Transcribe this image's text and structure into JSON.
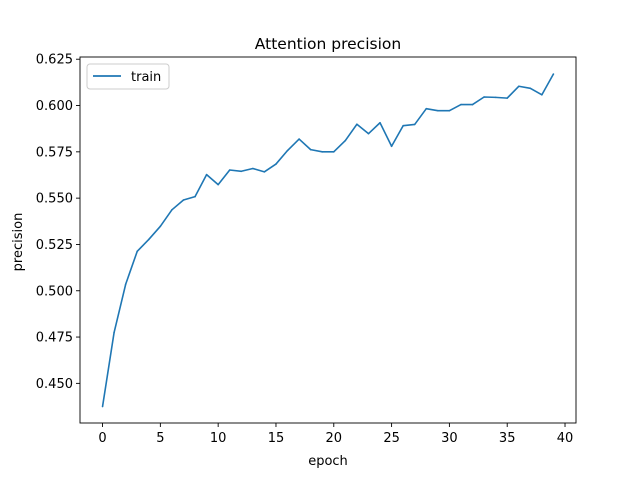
{
  "chart_data": {
    "type": "line",
    "title": "Attention precision",
    "xlabel": "epoch",
    "ylabel": "precision",
    "xlim": [
      -1.95,
      40.95
    ],
    "ylim": [
      0.4286,
      0.6262
    ],
    "xticks": [
      0,
      5,
      10,
      15,
      20,
      25,
      30,
      35,
      40
    ],
    "xtick_labels": [
      "0",
      "5",
      "10",
      "15",
      "20",
      "25",
      "30",
      "35",
      "40"
    ],
    "yticks": [
      0.45,
      0.475,
      0.5,
      0.525,
      0.55,
      0.575,
      0.6,
      0.625
    ],
    "ytick_labels": [
      "0.450",
      "0.475",
      "0.500",
      "0.525",
      "0.550",
      "0.575",
      "0.600",
      "0.625"
    ],
    "grid": false,
    "legend_position": "top-left",
    "series": [
      {
        "name": "train",
        "color": "#1f77b4",
        "x": [
          0,
          1,
          2,
          3,
          4,
          5,
          6,
          7,
          8,
          9,
          10,
          11,
          12,
          13,
          14,
          15,
          16,
          17,
          18,
          19,
          20,
          21,
          22,
          23,
          24,
          25,
          26,
          27,
          28,
          29,
          30,
          31,
          32,
          33,
          34,
          35,
          36,
          37,
          38,
          39
        ],
        "y": [
          0.4375,
          0.4775,
          0.5035,
          0.5213,
          0.5277,
          0.5348,
          0.5437,
          0.549,
          0.5508,
          0.5627,
          0.5573,
          0.5652,
          0.5645,
          0.566,
          0.5642,
          0.5684,
          0.5757,
          0.5819,
          0.5762,
          0.575,
          0.575,
          0.5811,
          0.5899,
          0.5848,
          0.5907,
          0.578,
          0.5891,
          0.5898,
          0.5983,
          0.5972,
          0.5972,
          0.6005,
          0.6005,
          0.6046,
          0.6044,
          0.604,
          0.6104,
          0.6093,
          0.6058,
          0.617
        ]
      }
    ]
  }
}
